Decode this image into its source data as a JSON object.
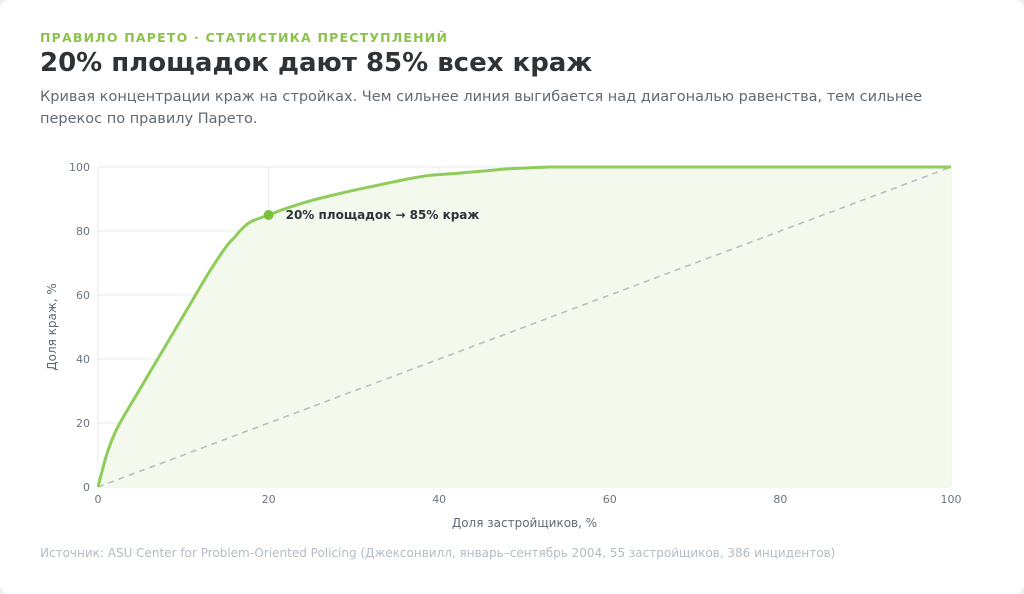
{
  "header": {
    "kicker": "ПРАВИЛО ПАРЕТО · СТАТИСТИКА ПРЕСТУПЛЕНИЙ",
    "title": "20% площадок дают 85% всех краж",
    "subtitle": "Кривая концентрации краж на стройках. Чем сильнее линия выгибается над диагональю равенства, тем сильнее перекос по правилу Парето."
  },
  "footer": {
    "source": "Источник: ASU Center for Problem-Oriented Policing (Джексонвилл, январь–сентябрь 2004, 55 застройщиков, 386 инцидентов)"
  },
  "colors": {
    "accent": "#8bc34a",
    "curve": "#8fcc5a",
    "area": "#f3f9ed",
    "diagonal": "#b8bec4",
    "grid": "#e6e9ec",
    "marker": "#7cbf3a"
  },
  "chart_data": {
    "type": "line",
    "xlabel": "Доля застройщиков, %",
    "ylabel": "Доля краж, %",
    "xlim": [
      0,
      100
    ],
    "ylim": [
      0,
      100
    ],
    "xticks": [
      0,
      20,
      40,
      60,
      80,
      100
    ],
    "yticks": [
      0,
      20,
      40,
      60,
      80,
      100
    ],
    "grid": true,
    "series": [
      {
        "x": [
          0,
          1,
          2,
          3,
          5,
          7,
          9,
          11,
          13,
          15,
          16,
          17,
          18,
          20,
          22,
          25,
          28,
          31,
          34,
          37,
          39,
          42,
          45,
          48,
          51,
          53,
          55,
          60,
          70,
          80,
          90,
          100
        ],
        "y": [
          0,
          10,
          17,
          22,
          31,
          40,
          49,
          58,
          67,
          75,
          78,
          81,
          83,
          85,
          87,
          89.5,
          91.5,
          93.3,
          95,
          96.6,
          97.4,
          98,
          98.7,
          99.4,
          99.8,
          100,
          100,
          100,
          100,
          100,
          100,
          100
        ]
      },
      {
        "x": [
          0,
          100
        ],
        "y": [
          0,
          100
        ],
        "style": "dashed"
      }
    ],
    "annotation": {
      "x": 20,
      "y": 85,
      "text": "20% площадок → 85% краж"
    }
  }
}
